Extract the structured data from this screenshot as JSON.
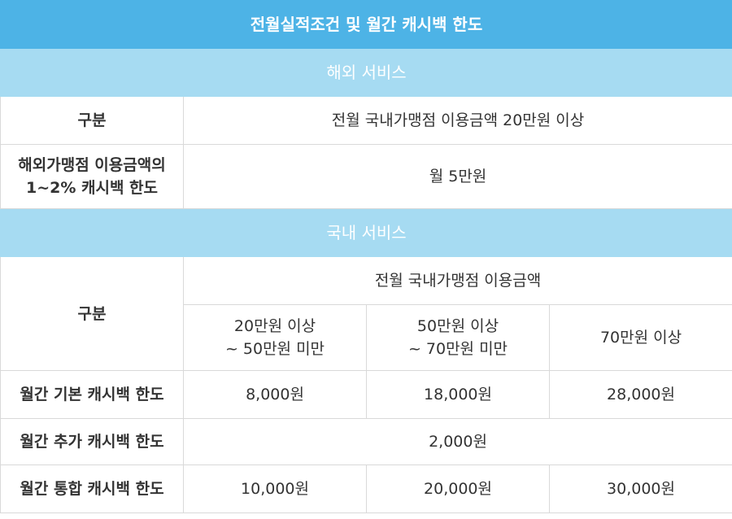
{
  "title": "전월실적조건 및 월간 캐시백 한도",
  "overseas": {
    "section_title": "해외 서비스",
    "header_label": "구분",
    "header_value": "전월 국내가맹점 이용금액 20만원 이상",
    "row_label_line1": "해외가맹점 이용금액의",
    "row_label_line2": "1~2% 캐시백 한도",
    "row_value": "월 5만원"
  },
  "domestic": {
    "section_title": "국내 서비스",
    "header_label": "구분",
    "header_group": "전월 국내가맹점 이용금액",
    "tiers": [
      {
        "line1": "20만원 이상",
        "line2": "~ 50만원 미만"
      },
      {
        "line1": "50만원 이상",
        "line2": "~ 70만원 미만"
      },
      {
        "line1": "70만원 이상",
        "line2": ""
      }
    ],
    "rows": [
      {
        "label": "월간 기본 캐시백 한도",
        "values": [
          "8,000원",
          "18,000원",
          "28,000원"
        ]
      },
      {
        "label": "월간 추가 캐시백 한도",
        "merged_value": "2,000원"
      },
      {
        "label": "월간 통합 캐시백 한도",
        "values": [
          "10,000원",
          "20,000원",
          "30,000원"
        ]
      }
    ]
  }
}
